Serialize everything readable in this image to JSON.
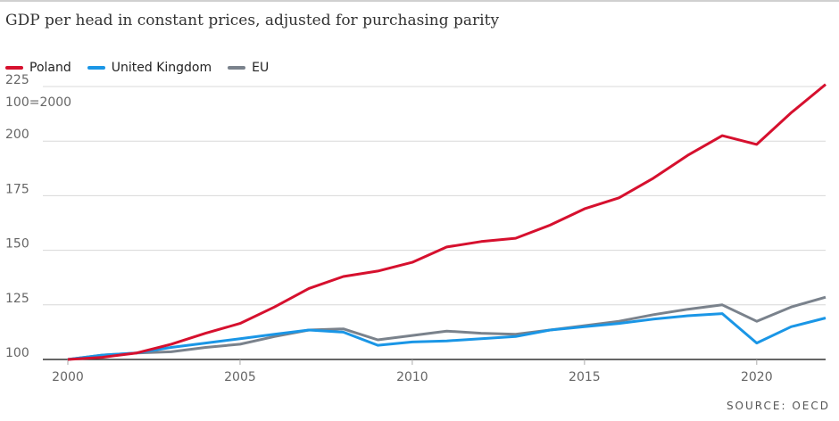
{
  "title": "GDP per head in constant prices, adjusted for purchasing parity",
  "source": "SOURCE: OECD",
  "chart_data": {
    "type": "line",
    "title": "GDP per head in constant prices, adjusted for purchasing parity",
    "ylabel": "100=2000",
    "xlabel": "",
    "x": [
      2000,
      2001,
      2002,
      2003,
      2004,
      2005,
      2006,
      2007,
      2008,
      2009,
      2010,
      2011,
      2012,
      2013,
      2014,
      2015,
      2016,
      2017,
      2018,
      2019,
      2020,
      2021,
      2022
    ],
    "xlim": [
      2000,
      2022
    ],
    "ylim": [
      100,
      225
    ],
    "xticks": [
      "2000",
      "2005",
      "2010",
      "2015",
      "2020"
    ],
    "yticks": [
      "100",
      "125",
      "150",
      "175",
      "200",
      "225"
    ],
    "grid": "horizontal",
    "legend": "top-left",
    "series": [
      {
        "name": "Poland",
        "color": "#d6102e",
        "values": [
          100,
          101,
          103,
          107,
          112,
          116.5,
          124,
          132.5,
          138,
          140.5,
          144.5,
          151.5,
          154,
          155.5,
          161.5,
          169,
          174,
          183,
          193.5,
          202.5,
          198.5,
          213,
          226
        ]
      },
      {
        "name": "United Kingdom",
        "color": "#1a96e6",
        "values": [
          100,
          102,
          103,
          105.5,
          107.5,
          109.5,
          111.5,
          113.5,
          112.5,
          106.5,
          108,
          108.5,
          109.5,
          110.5,
          113.5,
          115,
          116.5,
          118.5,
          120,
          121,
          107.5,
          115,
          119
        ]
      },
      {
        "name": "EU",
        "color": "#7a828c",
        "values": [
          100,
          102,
          103,
          103.5,
          105.5,
          107,
          110.5,
          113.5,
          114,
          109,
          111,
          113,
          112,
          111.5,
          113.5,
          115.5,
          117.5,
          120.5,
          123,
          125,
          117.5,
          124,
          128.5
        ]
      }
    ]
  }
}
